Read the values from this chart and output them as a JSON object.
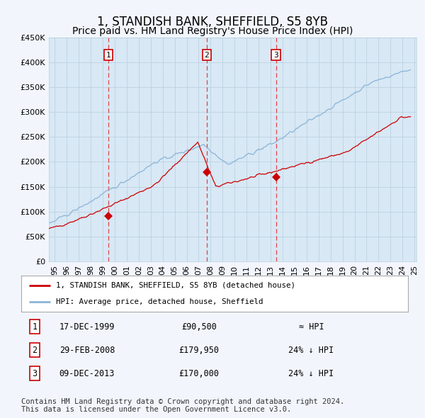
{
  "title": "1, STANDISH BANK, SHEFFIELD, S5 8YB",
  "subtitle": "Price paid vs. HM Land Registry's House Price Index (HPI)",
  "title_fontsize": 12,
  "subtitle_fontsize": 10,
  "background_color": "#d8e8f5",
  "fig_bg_color": "#f2f6fc",
  "hpi_color": "#8ab4d8",
  "price_color": "#cc0000",
  "marker_color": "#cc0000",
  "vline_color": "#dd4444",
  "grid_color": "#b8cede",
  "ylim": [
    0,
    450000
  ],
  "yticks": [
    0,
    50000,
    100000,
    150000,
    200000,
    250000,
    300000,
    350000,
    400000,
    450000
  ],
  "x_start_year": 1995,
  "x_end_year": 2025,
  "sale_dates": [
    "1999-12-17",
    "2008-02-29",
    "2013-12-09"
  ],
  "sale_prices": [
    90500,
    179950,
    170000
  ],
  "sale_labels": [
    "1",
    "2",
    "3"
  ],
  "legend_entries": [
    "1, STANDISH BANK, SHEFFIELD, S5 8YB (detached house)",
    "HPI: Average price, detached house, Sheffield"
  ],
  "table_rows": [
    [
      "1",
      "17-DEC-1999",
      "£90,500",
      "≈ HPI"
    ],
    [
      "2",
      "29-FEB-2008",
      "£179,950",
      "24% ↓ HPI"
    ],
    [
      "3",
      "09-DEC-2013",
      "£170,000",
      "24% ↓ HPI"
    ]
  ],
  "footer": "Contains HM Land Registry data © Crown copyright and database right 2024.\nThis data is licensed under the Open Government Licence v3.0.",
  "footer_fontsize": 7.5
}
